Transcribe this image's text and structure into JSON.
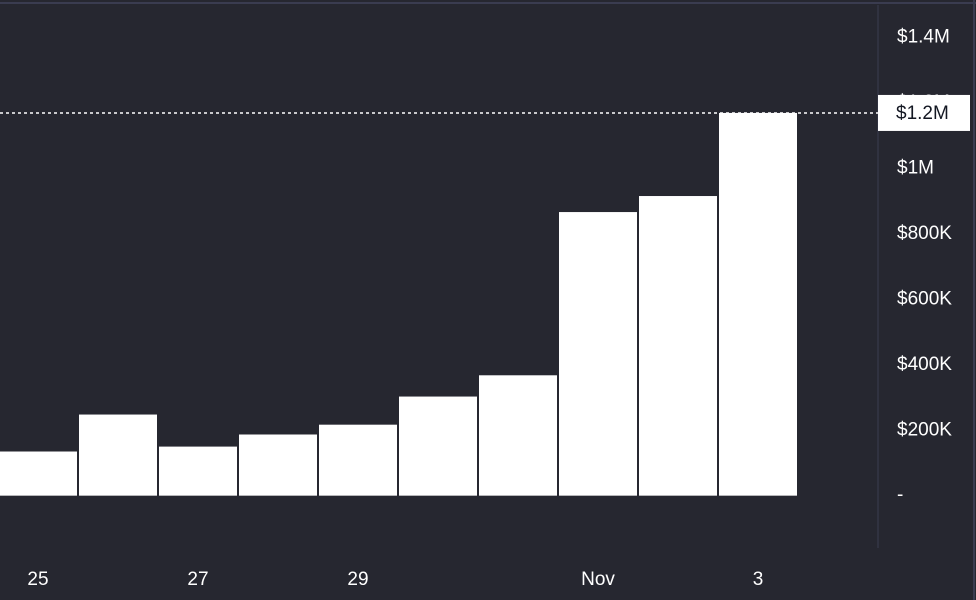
{
  "chart_data": {
    "type": "bar",
    "categories": [
      "25",
      null,
      "27",
      null,
      "29",
      null,
      null,
      "Nov",
      null,
      "3"
    ],
    "values": [
      135000,
      248000,
      150000,
      187000,
      217000,
      303000,
      368000,
      867000,
      916000,
      1170000
    ],
    "color": "#ffffff",
    "ylim": [
      -160000,
      1500000
    ],
    "yticks": [
      {
        "value": 0,
        "label": "-"
      },
      {
        "value": 200000,
        "label": "$200K"
      },
      {
        "value": 400000,
        "label": "$400K"
      },
      {
        "value": 600000,
        "label": "$600K"
      },
      {
        "value": 800000,
        "label": "$800K"
      },
      {
        "value": 1000000,
        "label": "$1M"
      },
      {
        "value": 1200000,
        "label": "$1.2M"
      },
      {
        "value": 1400000,
        "label": "$1.4M"
      }
    ],
    "grid": false,
    "price_line": {
      "value": 1170000,
      "label": "$1.2M"
    }
  }
}
